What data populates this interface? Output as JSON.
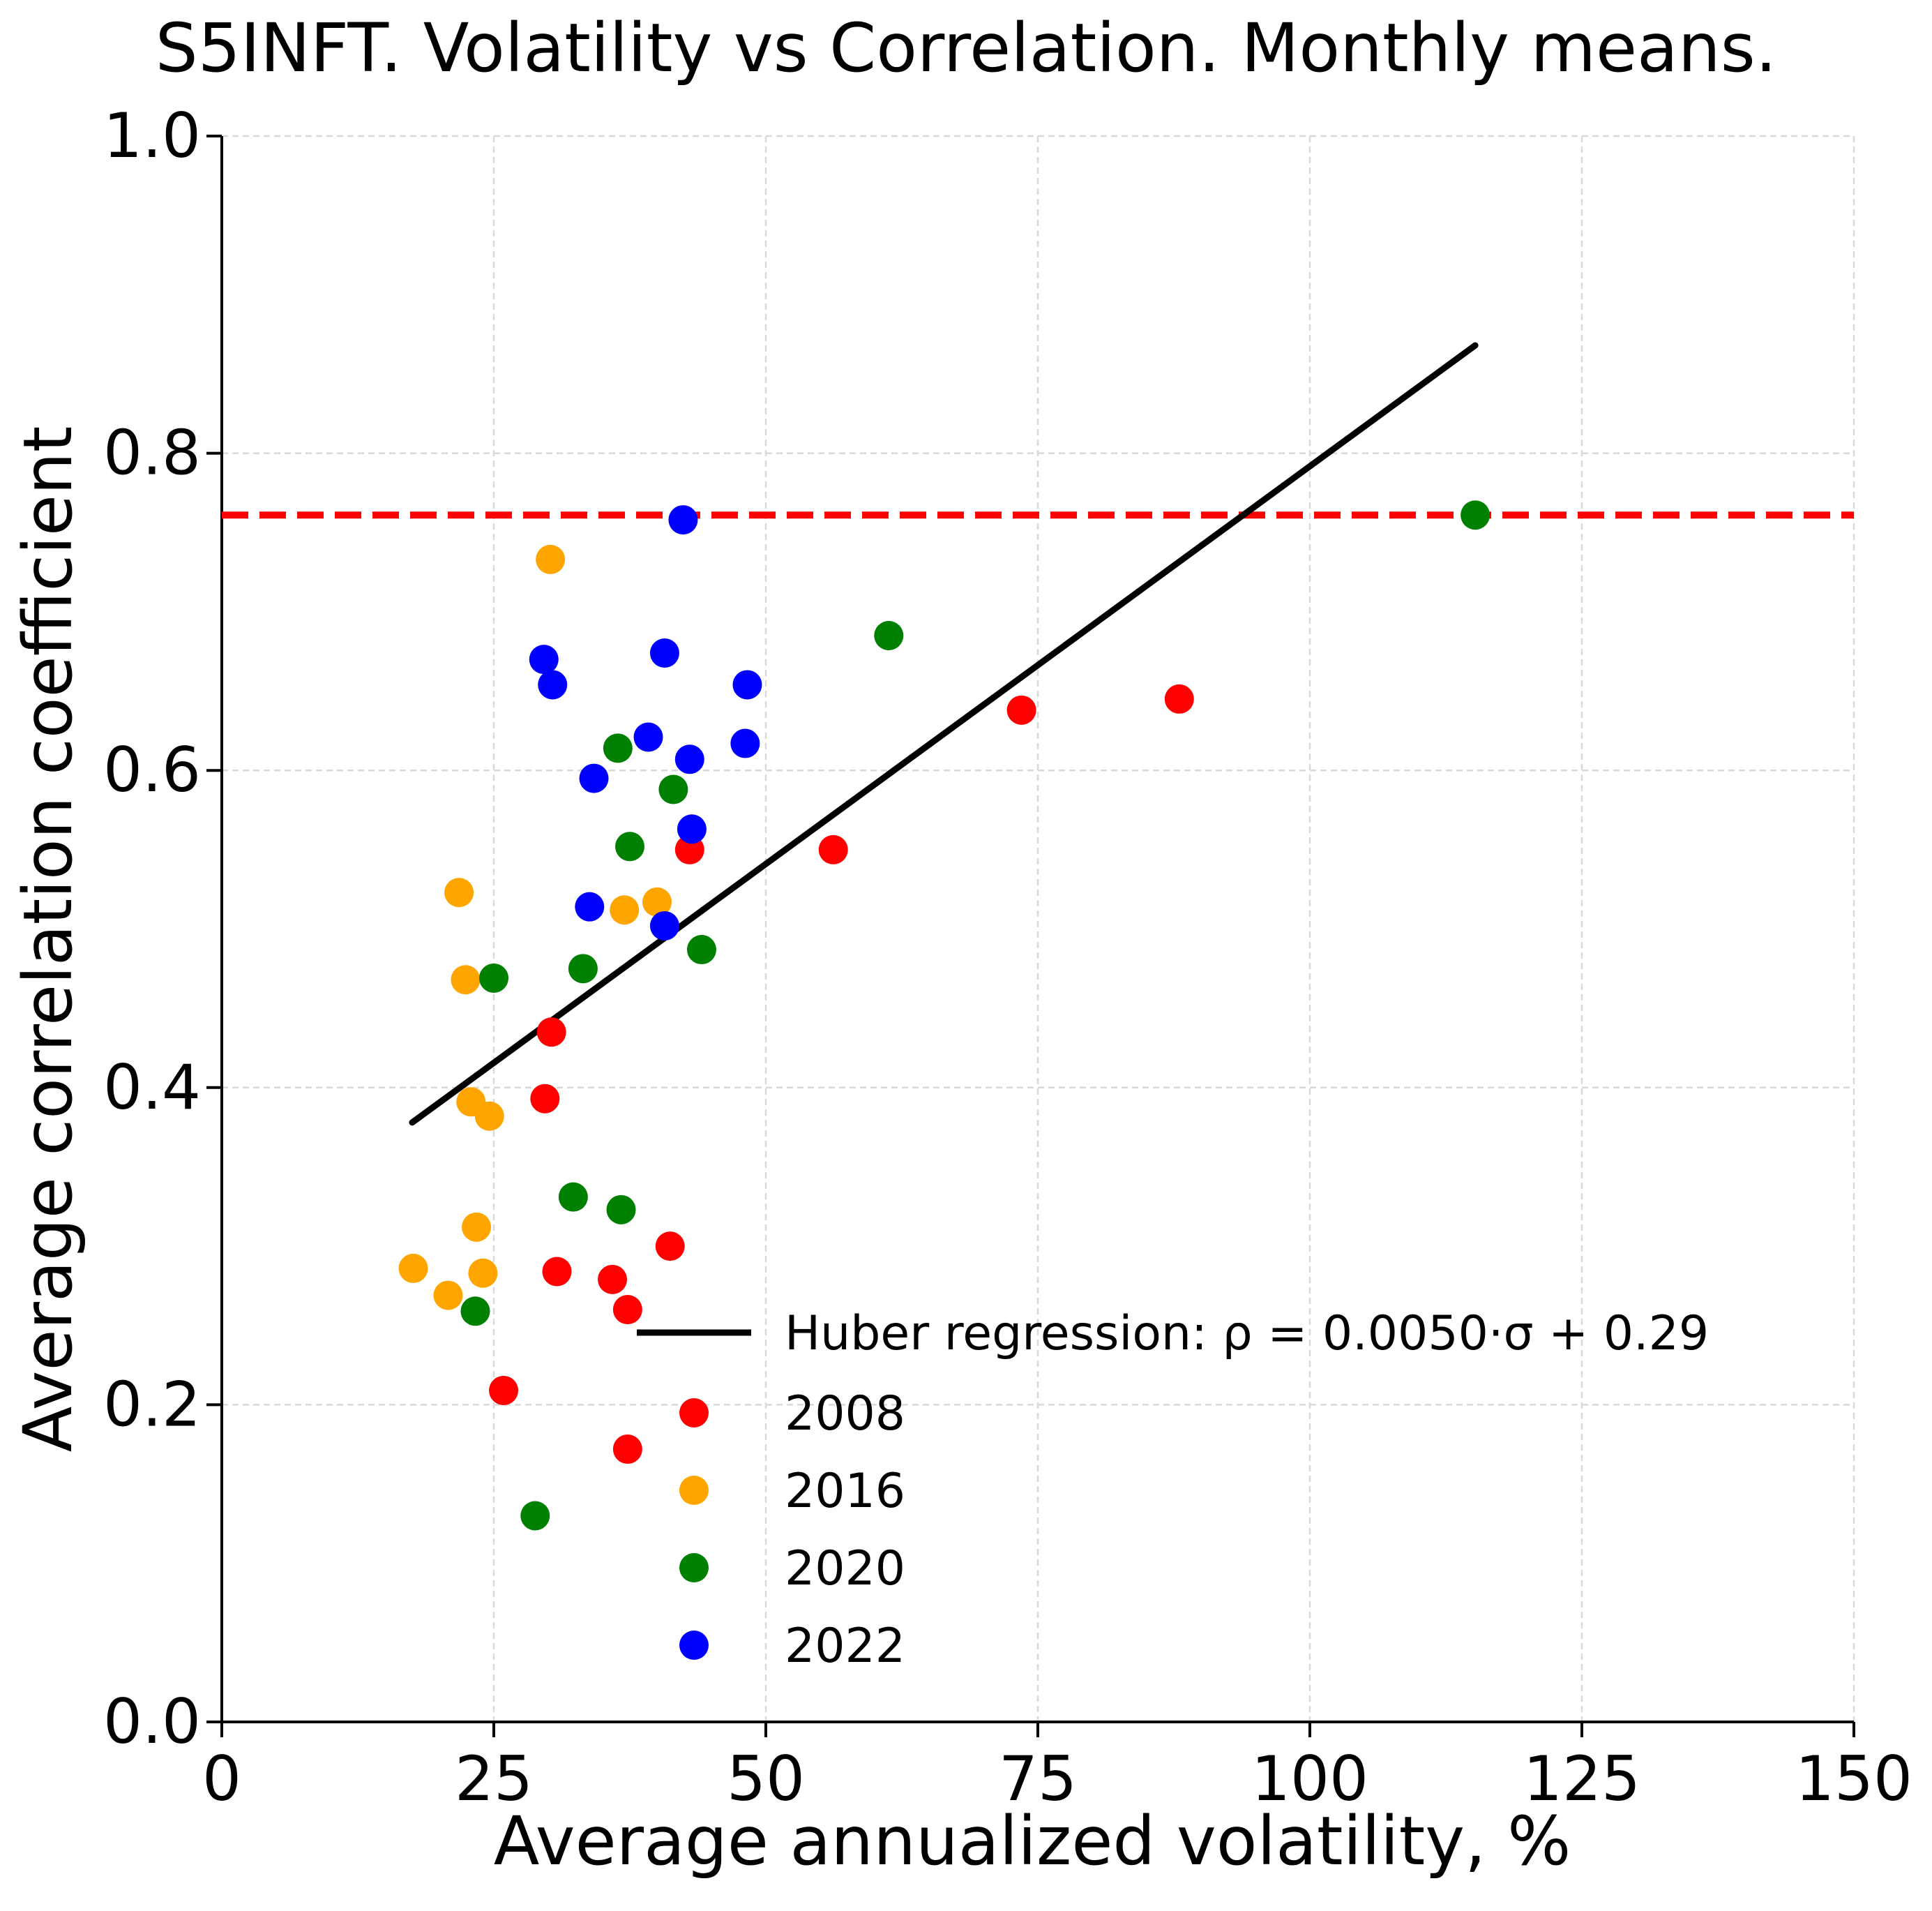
{
  "chart_data": {
    "type": "scatter",
    "title": "S5INFT. Volatility vs Correlation. Monthly means.",
    "xlabel": "Average annualized volatility, %",
    "ylabel": "Average correlation coefficient",
    "xlim": [
      0,
      150
    ],
    "ylim": [
      0,
      1.0
    ],
    "xticks": [
      "0",
      "25",
      "50",
      "75",
      "100",
      "125",
      "150"
    ],
    "yticks": [
      "0.0",
      "0.2",
      "0.4",
      "0.6",
      "0.8",
      "1.0"
    ],
    "grid": true,
    "legend_position": "lower-right",
    "regression": {
      "label": "Huber regression: ρ = 0.0050·σ + 0.29",
      "color": "#000000",
      "x_range": [
        17.5,
        115.2
      ],
      "slope": 0.005,
      "intercept": 0.29,
      "y_start": 0.378,
      "y_end": 0.868
    },
    "reference_line": {
      "y": 0.761,
      "color": "#ff0000",
      "style": "dashed"
    },
    "series": [
      {
        "name": "2008",
        "color": "#ff0000",
        "points": [
          [
            43.0,
            0.55
          ],
          [
            56.2,
            0.55
          ],
          [
            73.5,
            0.638
          ],
          [
            88.0,
            0.645
          ],
          [
            30.3,
            0.435
          ],
          [
            29.7,
            0.393
          ],
          [
            41.2,
            0.3
          ],
          [
            30.8,
            0.284
          ],
          [
            35.9,
            0.279
          ],
          [
            37.3,
            0.26
          ],
          [
            25.9,
            0.209
          ],
          [
            37.3,
            0.172
          ]
        ]
      },
      {
        "name": "2016",
        "color": "#ffa500",
        "points": [
          [
            30.2,
            0.733
          ],
          [
            21.8,
            0.523
          ],
          [
            37.0,
            0.512
          ],
          [
            40.0,
            0.517
          ],
          [
            22.4,
            0.468
          ],
          [
            22.9,
            0.391
          ],
          [
            24.6,
            0.382
          ],
          [
            23.4,
            0.312
          ],
          [
            17.6,
            0.286
          ],
          [
            24.0,
            0.283
          ],
          [
            20.8,
            0.269
          ]
        ]
      },
      {
        "name": "2020",
        "color": "#008000",
        "points": [
          [
            115.2,
            0.761
          ],
          [
            61.3,
            0.685
          ],
          [
            36.4,
            0.614
          ],
          [
            41.5,
            0.588
          ],
          [
            37.5,
            0.552
          ],
          [
            44.1,
            0.487
          ],
          [
            33.2,
            0.475
          ],
          [
            25.0,
            0.469
          ],
          [
            32.3,
            0.331
          ],
          [
            36.7,
            0.323
          ],
          [
            23.3,
            0.259
          ],
          [
            28.8,
            0.13
          ]
        ]
      },
      {
        "name": "2022",
        "color": "#0000ff",
        "points": [
          [
            42.4,
            0.758
          ],
          [
            29.6,
            0.67
          ],
          [
            40.7,
            0.674
          ],
          [
            30.4,
            0.654
          ],
          [
            48.3,
            0.654
          ],
          [
            39.2,
            0.621
          ],
          [
            43.0,
            0.607
          ],
          [
            48.1,
            0.617
          ],
          [
            34.2,
            0.595
          ],
          [
            43.2,
            0.563
          ],
          [
            33.8,
            0.514
          ],
          [
            40.7,
            0.502
          ]
        ]
      }
    ]
  }
}
